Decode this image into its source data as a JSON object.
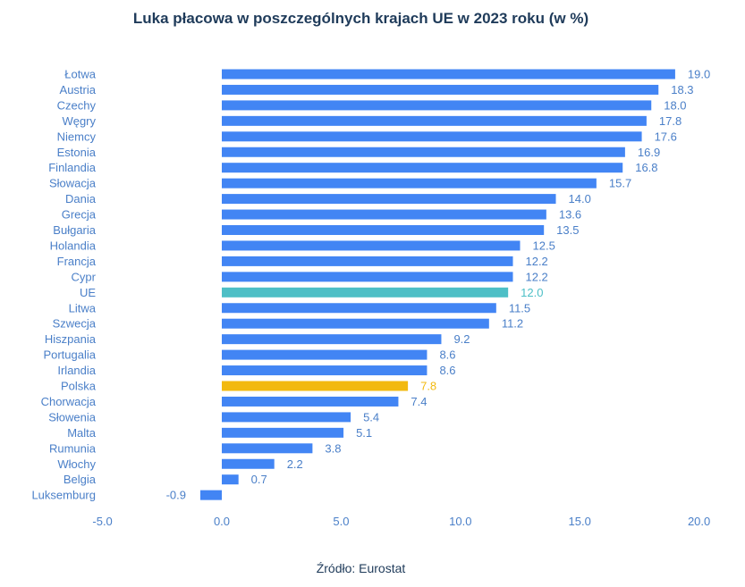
{
  "chart_data": {
    "type": "bar",
    "orientation": "horizontal",
    "title": "Luka płacowa w poszczególnych krajach UE w 2023 roku (w %)",
    "source": "Źródło: Eurostat",
    "categories": [
      "Łotwa",
      "Austria",
      "Czechy",
      "Węgry",
      "Niemcy",
      "Estonia",
      "Finlandia",
      "Słowacja",
      "Dania",
      "Grecja",
      "Bułgaria",
      "Holandia",
      "Francja",
      "Cypr",
      "UE",
      "Litwa",
      "Szwecja",
      "Hiszpania",
      "Portugalia",
      "Irlandia",
      "Polska",
      "Chorwacja",
      "Słowenia",
      "Malta",
      "Rumunia",
      "Włochy",
      "Belgia",
      "Luksemburg"
    ],
    "values": [
      19.0,
      18.3,
      18.0,
      17.8,
      17.6,
      16.9,
      16.8,
      15.7,
      14.0,
      13.6,
      13.5,
      12.5,
      12.2,
      12.2,
      12.0,
      11.5,
      11.2,
      9.2,
      8.6,
      8.6,
      7.8,
      7.4,
      5.4,
      5.1,
      3.8,
      2.2,
      0.7,
      -0.9
    ],
    "value_labels": [
      "19.0",
      "18.3",
      "18.0",
      "17.8",
      "17.6",
      "16.9",
      "16.8",
      "15.7",
      "14.0",
      "13.6",
      "13.5",
      "12.5",
      "12.2",
      "12.2",
      "12.0",
      "11.5",
      "11.2",
      "9.2",
      "8.6",
      "8.6",
      "7.8",
      "7.4",
      "5.4",
      "5.1",
      "3.8",
      "2.2",
      "0.7",
      "-0.9"
    ],
    "xlim": [
      -5.0,
      20.0
    ],
    "xticks": [
      "-5.0",
      "0.0",
      "5.0",
      "10.0",
      "15.0",
      "20.0"
    ],
    "grid": false,
    "legend": "none",
    "colors": {
      "default": "#4285f4",
      "highlight_UE": "#4dbfc6",
      "highlight_Polska": "#f2b90f",
      "text": "#4a7fc8",
      "title": "#1f3b5a"
    }
  }
}
